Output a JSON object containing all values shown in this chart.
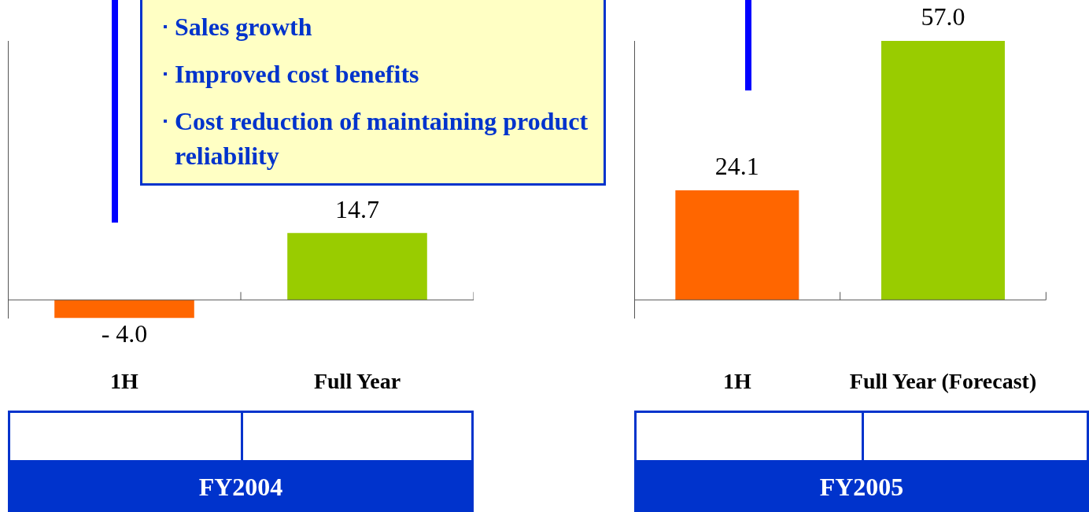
{
  "chart_data": [
    {
      "type": "bar",
      "categories": [
        "1H",
        "Full Year"
      ],
      "xlabel": "FY2004",
      "colors": [
        "#ff6600",
        "#99cc00"
      ],
      "values": [
        -4.0,
        14.7
      ],
      "value_labels": [
        "- 4.0",
        "14.7"
      ],
      "grid": false,
      "legend": false,
      "annotations": [
        "Sales growth",
        "Improved cost benefits",
        "Cost reduction of maintaining product reliability"
      ]
    },
    {
      "type": "bar",
      "categories": [
        "1H",
        "Full Year (Forecast)"
      ],
      "xlabel": "FY2005",
      "colors": [
        "#ff6600",
        "#99cc00"
      ],
      "values": [
        24.1,
        57.0
      ],
      "value_labels": [
        "24.1",
        "57.0"
      ],
      "grid": false,
      "legend": false
    }
  ]
}
